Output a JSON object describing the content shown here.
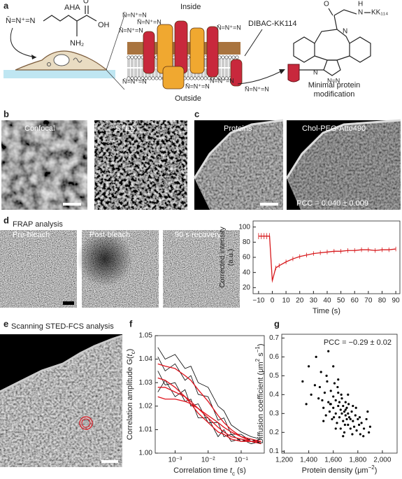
{
  "panels": {
    "a": {
      "label": "a",
      "aha": "AHA",
      "oh": "OH",
      "o": "O",
      "nh2": "NH₂",
      "azide": "N̄=N⁺=N",
      "inside": "Inside",
      "outside": "Outside",
      "dibac": "DIBAC-KK114",
      "n": "N",
      "h": "H",
      "kk": "KK₁₁₄",
      "nn": "N=N",
      "caption": [
        "Minimal protein",
        "modification"
      ]
    },
    "b": {
      "label": "b",
      "images": [
        "Confocal",
        "STED"
      ]
    },
    "c": {
      "label": "c",
      "images": [
        "Proteins",
        "Chol-PEG-Atto490"
      ],
      "pcc": "PCC = 0.040 ± 0.009"
    },
    "d": {
      "label": "d",
      "title": "FRAP analysis",
      "images": [
        "Pre-bleach",
        "Post-bleach",
        "90 s recovery"
      ]
    },
    "e": {
      "label": "e",
      "title": "Scanning STED-FCS analysis"
    },
    "f": {
      "label": "f"
    },
    "g": {
      "label": "g"
    }
  },
  "chart_data": [
    {
      "type": "line",
      "x": [
        -10,
        -8,
        -6,
        -4,
        -2,
        0,
        2.5,
        5,
        10,
        15,
        20,
        25,
        30,
        35,
        40,
        45,
        50,
        55,
        60,
        65,
        70,
        75,
        80,
        85,
        90
      ],
      "series": [
        {
          "color": "#d7191c",
          "values": [
            88,
            88,
            88,
            88,
            88,
            29,
            46,
            49,
            54,
            58,
            61,
            63,
            65,
            66,
            67,
            68,
            68,
            69,
            69,
            70,
            70,
            69,
            70,
            70,
            71
          ],
          "errors": [
            4,
            4,
            4,
            4,
            4,
            2,
            3,
            3,
            3,
            3,
            3,
            3,
            3,
            3,
            3,
            3,
            3,
            3,
            3,
            3,
            3,
            3,
            3,
            3,
            3
          ]
        }
      ],
      "xlim": [
        -14,
        93
      ],
      "ylim": [
        12,
        108
      ],
      "xticks": [
        {
          "value": -10,
          "label": "−10"
        },
        0,
        10,
        20,
        30,
        40,
        50,
        60,
        70,
        80,
        90
      ],
      "yticks": [
        20,
        40,
        60,
        80,
        100
      ],
      "xlabel": "Time (s)",
      "ylabel": "Corrected intensity (a.u.)"
    },
    {
      "type": "line",
      "log_x": true,
      "x": [
        0.0003,
        0.0005,
        0.001,
        0.002,
        0.003,
        0.005,
        0.01,
        0.02,
        0.03,
        0.05,
        0.1,
        0.2,
        0.4
      ],
      "series": [
        {
          "color": "#000000",
          "values": [
            1.041,
            1.035,
            1.038,
            1.031,
            1.033,
            1.025,
            1.024,
            1.014,
            1.015,
            1.008,
            1.008,
            1.005,
            1.006
          ]
        },
        {
          "color": "#000000",
          "values": [
            1.026,
            1.031,
            1.024,
            1.027,
            1.02,
            1.021,
            1.013,
            1.013,
            1.007,
            1.008,
            1.005,
            1.006,
            1.004
          ]
        },
        {
          "color": "#000000",
          "values": [
            1.035,
            1.029,
            1.03,
            1.022,
            1.023,
            1.015,
            1.015,
            1.007,
            1.01,
            1.005,
            1.006,
            1.004,
            1.005
          ]
        },
        {
          "color": "#000000",
          "values": [
            1.045,
            1.04,
            1.042,
            1.036,
            1.037,
            1.03,
            1.028,
            1.02,
            1.018,
            1.012,
            1.009,
            1.007,
            1.006
          ]
        },
        {
          "color": "#e0141e",
          "values": [
            1.038,
            1.037,
            1.036,
            1.033,
            1.031,
            1.027,
            1.022,
            1.016,
            1.013,
            1.01,
            1.007,
            1.006,
            1.005
          ]
        },
        {
          "color": "#e0141e",
          "values": [
            1.028,
            1.028,
            1.026,
            1.024,
            1.022,
            1.019,
            1.015,
            1.011,
            1.009,
            1.007,
            1.006,
            1.005,
            1.005
          ]
        },
        {
          "color": "#e0141e",
          "values": [
            1.032,
            1.031,
            1.028,
            1.024,
            1.021,
            1.017,
            1.013,
            1.009,
            1.008,
            1.006,
            1.005,
            1.005,
            1.004
          ]
        },
        {
          "color": "#e0141e",
          "values": [
            1.024,
            1.023,
            1.023,
            1.022,
            1.021,
            1.019,
            1.016,
            1.013,
            1.011,
            1.009,
            1.007,
            1.005,
            1.005
          ]
        }
      ],
      "xlim": [
        0.00025,
        0.5
      ],
      "ylim": [
        1,
        1.05
      ],
      "xticks": [
        {
          "value": 0.001,
          "label": "10⁻³"
        },
        {
          "value": 0.01,
          "label": "10⁻²"
        },
        {
          "value": 0.1,
          "label": "10⁻¹"
        }
      ],
      "yticks": [
        {
          "value": 1,
          "label": "1.00"
        },
        1.01,
        1.02,
        1.03,
        1.04,
        1.05
      ],
      "xlabel": [
        "Correlation time ",
        "t",
        "c",
        " (s)"
      ],
      "ylabel": [
        "Correlation amplitude G(",
        "t",
        "c",
        ")"
      ]
    },
    {
      "type": "scatter",
      "color": "#000000",
      "x": [
        1450,
        1480,
        1500,
        1520,
        1530,
        1540,
        1550,
        1560,
        1570,
        1580,
        1590,
        1600,
        1600,
        1610,
        1620,
        1620,
        1630,
        1640,
        1640,
        1650,
        1650,
        1660,
        1660,
        1670,
        1670,
        1680,
        1680,
        1690,
        1690,
        1700,
        1700,
        1710,
        1710,
        1720,
        1720,
        1730,
        1740,
        1750,
        1760,
        1770,
        1780,
        1790,
        1800,
        1810,
        1820,
        1830,
        1850,
        1870,
        1890,
        1420,
        1400,
        1380,
        1460,
        1490,
        1510,
        1545,
        1575,
        1605,
        1635,
        1665,
        1695,
        1725,
        1755,
        1785,
        1815,
        1845,
        1350,
        1880,
        1900,
        1560,
        1600,
        1640,
        1680,
        1720,
        1760,
        1520,
        1580,
        1620,
        1700,
        1740
      ],
      "values": [
        0.45,
        0.38,
        0.52,
        0.33,
        0.41,
        0.29,
        0.47,
        0.36,
        0.31,
        0.42,
        0.27,
        0.39,
        0.33,
        0.46,
        0.3,
        0.37,
        0.25,
        0.41,
        0.34,
        0.28,
        0.36,
        0.32,
        0.22,
        0.38,
        0.3,
        0.26,
        0.34,
        0.31,
        0.2,
        0.29,
        0.36,
        0.27,
        0.33,
        0.24,
        0.3,
        0.28,
        0.22,
        0.31,
        0.26,
        0.23,
        0.29,
        0.21,
        0.27,
        0.24,
        0.19,
        0.25,
        0.22,
        0.27,
        0.2,
        0.4,
        0.55,
        0.35,
        0.6,
        0.44,
        0.37,
        0.5,
        0.35,
        0.28,
        0.44,
        0.4,
        0.24,
        0.35,
        0.19,
        0.33,
        0.28,
        0.18,
        0.47,
        0.31,
        0.23,
        0.63,
        0.55,
        0.48,
        0.18,
        0.4,
        0.34,
        0.26,
        0.35,
        0.22,
        0.32,
        0.27
      ],
      "xlim": [
        1180,
        2120
      ],
      "ylim": [
        0.09,
        0.72
      ],
      "xticks": [
        {
          "value": 1200,
          "label": "1,200"
        },
        {
          "value": 1400,
          "label": "1,400"
        },
        {
          "value": 1600,
          "label": "1,600"
        },
        {
          "value": 1800,
          "label": "1,800"
        },
        {
          "value": 2000,
          "label": "2,000"
        }
      ],
      "yticks": [
        0.1,
        0.2,
        0.3,
        0.4,
        0.5,
        0.6,
        0.7
      ],
      "xlabel": [
        "Protein density (μm",
        "−2",
        ")"
      ],
      "ylabel": [
        "Diffusion coefficient (μm",
        "2",
        " s",
        "−1",
        ")"
      ],
      "annotation": "PCC = −0.29 ± 0.02"
    }
  ]
}
